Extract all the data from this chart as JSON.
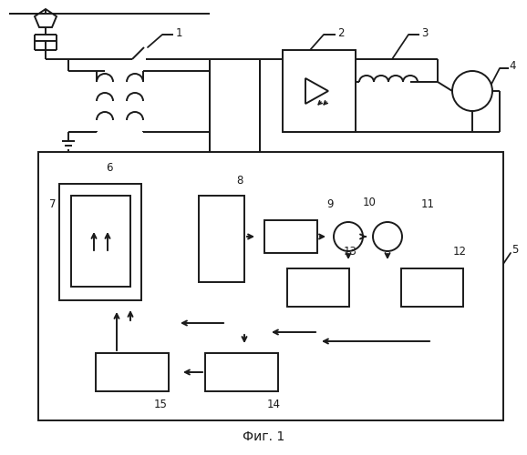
{
  "title": "Фиг. 1",
  "bg": "#ffffff",
  "lc": "#1a1a1a",
  "lw": 1.4
}
